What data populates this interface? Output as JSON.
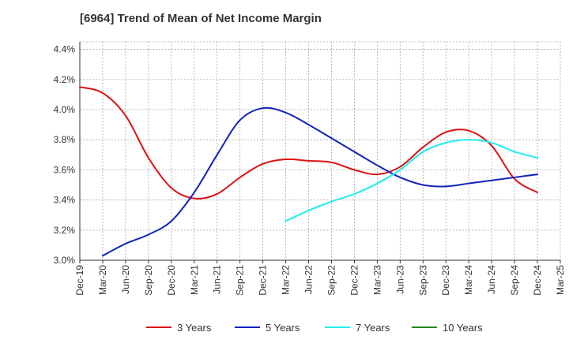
{
  "chart_data": {
    "type": "line",
    "title": "[6964]  Trend of Mean of Net Income Margin",
    "xlabel": "",
    "ylabel": "",
    "x_labels": [
      "Dec-19",
      "Mar-20",
      "Jun-20",
      "Sep-20",
      "Dec-20",
      "Mar-21",
      "Jun-21",
      "Sep-21",
      "Dec-21",
      "Mar-22",
      "Jun-22",
      "Sep-22",
      "Dec-22",
      "Mar-23",
      "Jun-23",
      "Sep-23",
      "Dec-23",
      "Mar-24",
      "Jun-24",
      "Sep-24",
      "Dec-24",
      "Mar-25"
    ],
    "y_ticks": [
      "3.0%",
      "3.2%",
      "3.4%",
      "3.6%",
      "3.8%",
      "4.0%",
      "4.2%",
      "4.4%"
    ],
    "ylim": [
      3.0,
      4.45
    ],
    "grid": true,
    "legend_position": "bottom",
    "series": [
      {
        "name": "3 Years",
        "color": "#dd1111",
        "values": [
          4.15,
          4.11,
          3.96,
          3.68,
          3.48,
          3.41,
          3.44,
          3.55,
          3.64,
          3.67,
          3.66,
          3.65,
          3.6,
          3.57,
          3.62,
          3.75,
          3.85,
          3.86,
          3.76,
          3.54,
          3.45,
          null
        ]
      },
      {
        "name": "5 Years",
        "color": "#1122bb",
        "values": [
          null,
          3.03,
          3.11,
          3.17,
          3.26,
          3.45,
          3.7,
          3.93,
          4.01,
          3.98,
          3.9,
          3.81,
          3.72,
          3.63,
          3.55,
          3.5,
          3.49,
          3.51,
          3.53,
          3.55,
          3.57,
          null
        ]
      },
      {
        "name": "7 Years",
        "color": "#22eeee",
        "values": [
          null,
          null,
          null,
          null,
          null,
          null,
          null,
          null,
          null,
          3.26,
          3.33,
          3.39,
          3.44,
          3.51,
          3.6,
          3.72,
          3.78,
          3.8,
          3.78,
          3.72,
          3.68,
          null
        ]
      },
      {
        "name": "10 Years",
        "color": "#228822",
        "values": [
          null,
          null,
          null,
          null,
          null,
          null,
          null,
          null,
          null,
          null,
          null,
          null,
          null,
          null,
          null,
          null,
          null,
          null,
          null,
          null,
          null,
          null
        ]
      }
    ]
  }
}
